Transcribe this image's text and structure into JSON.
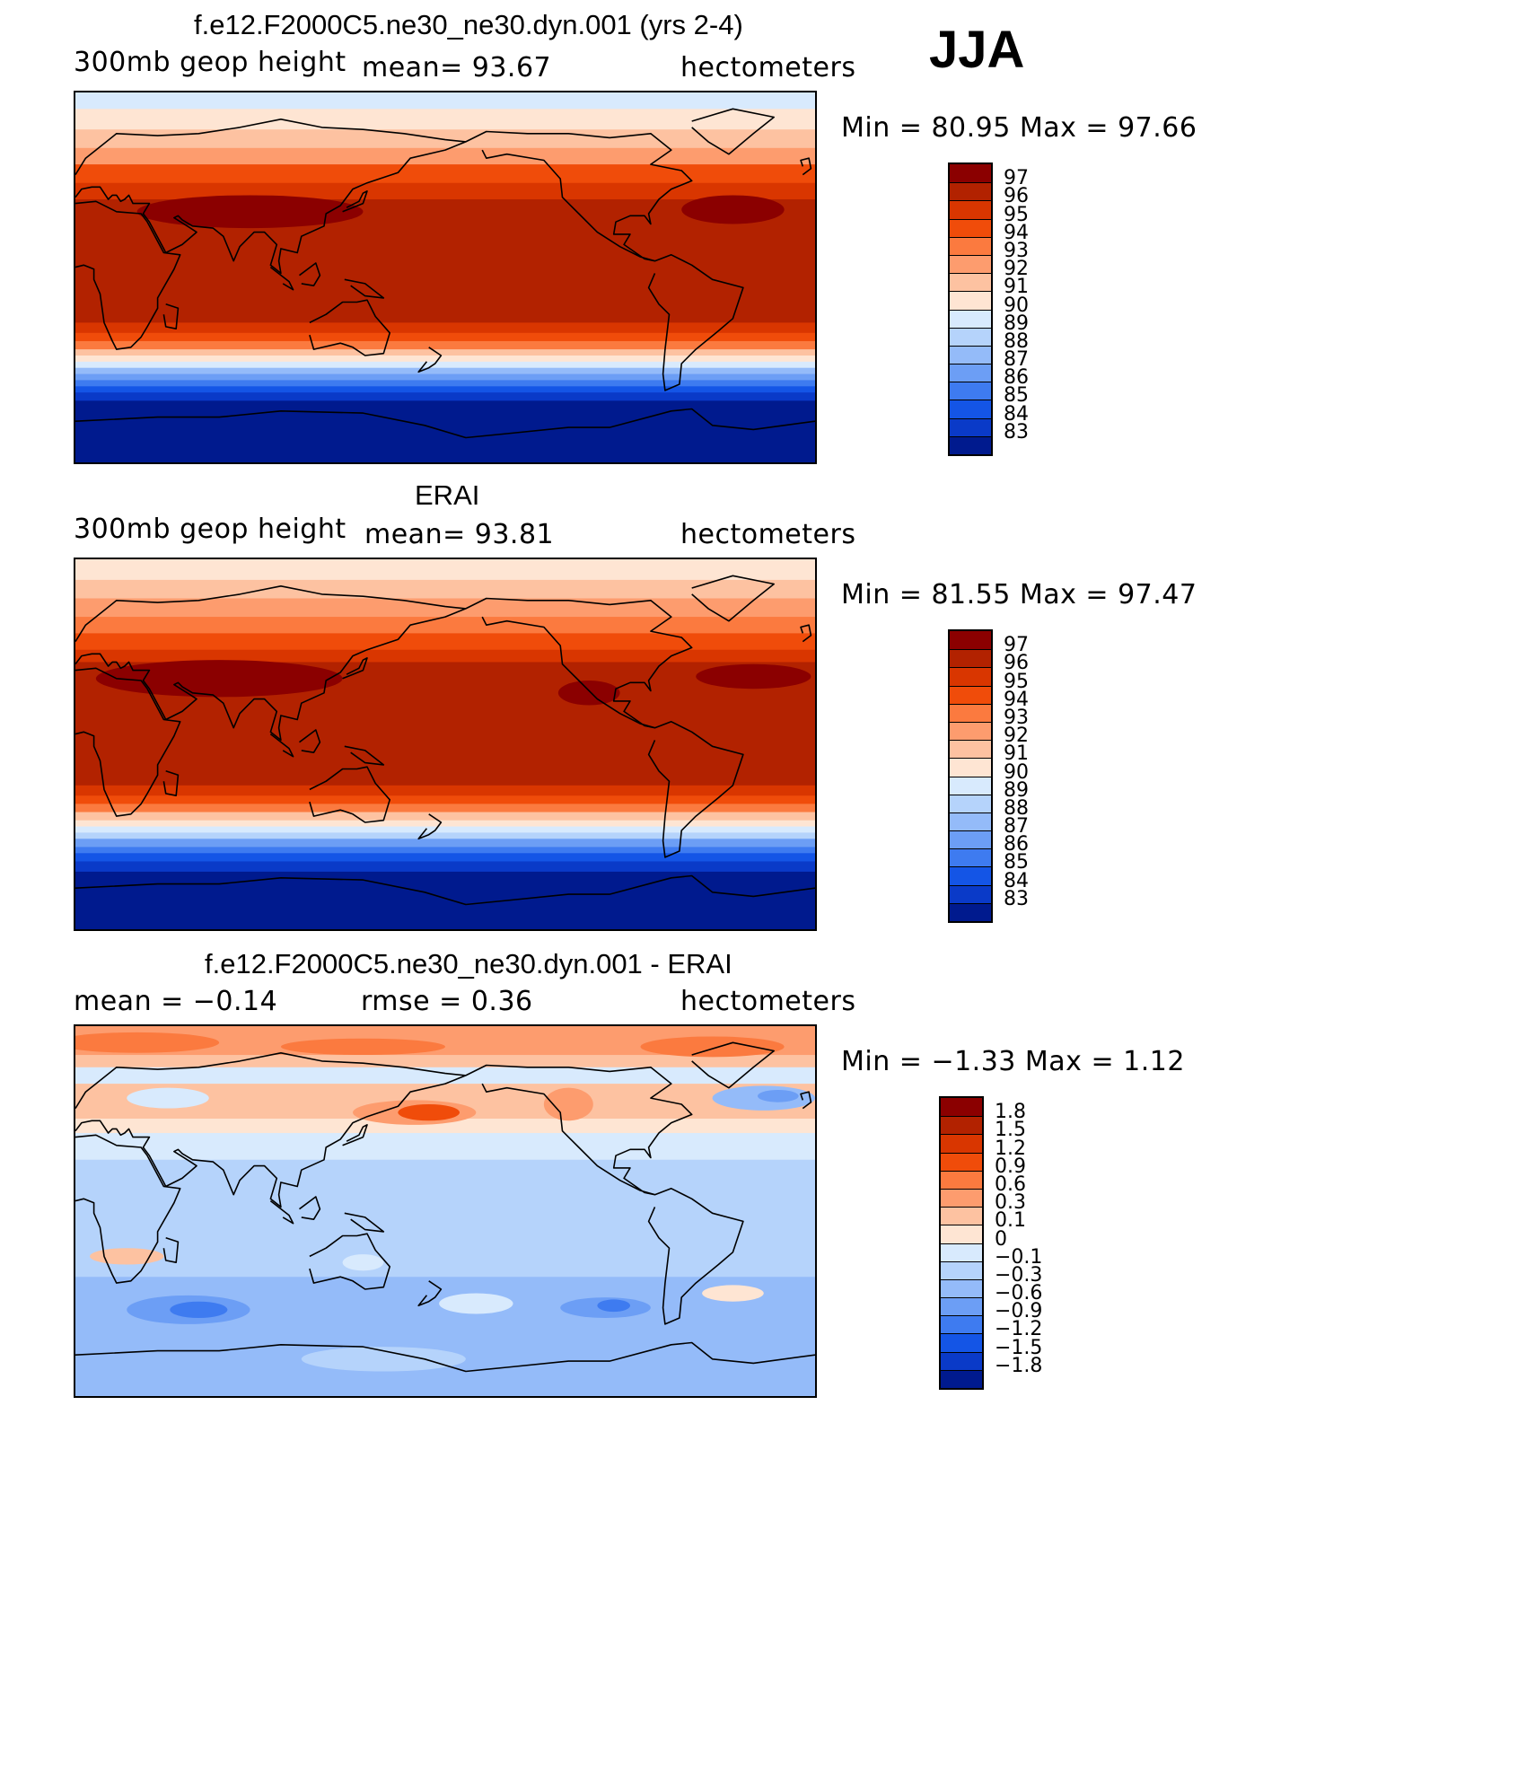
{
  "season": "JJA",
  "panels": [
    {
      "id": "model",
      "title": "f.e12.F2000C5.ne30_ne30.dyn.001 (yrs 2-4)",
      "left_label": "300mb  geop  height",
      "center_label": "mean=   93.67",
      "right_label": "hectometers",
      "minmax": "Min  =    80.95  Max  =    97.66",
      "levels": [
        "97",
        "96",
        "95",
        "94",
        "93",
        "92",
        "91",
        "90",
        "89",
        "88",
        "87",
        "86",
        "85",
        "84",
        "83"
      ],
      "colors": [
        "#8b0000",
        "#b22200",
        "#d93600",
        "#f04c0a",
        "#fb7a3f",
        "#fd9c6e",
        "#fdc2a1",
        "#fee5d3",
        "#d8eafd",
        "#b5d3fb",
        "#94bbf9",
        "#6c9ef5",
        "#3e7bf0",
        "#1455e6",
        "#0a3ac8",
        "#001a8e"
      ],
      "bands": [
        {
          "lat": 90,
          "c": "#d8eafd"
        },
        {
          "lat": 82,
          "c": "#fee5d3"
        },
        {
          "lat": 72,
          "c": "#fdc2a1"
        },
        {
          "lat": 63,
          "c": "#fd9c6e"
        },
        {
          "lat": 55,
          "c": "#f04c0a"
        },
        {
          "lat": 46,
          "c": "#d93600"
        },
        {
          "lat": 38,
          "c": "#b22200"
        },
        {
          "lat": -22,
          "c": "#d93600"
        },
        {
          "lat": -27,
          "c": "#f04c0a"
        },
        {
          "lat": -31,
          "c": "#fb7a3f"
        },
        {
          "lat": -35,
          "c": "#fdc2a1"
        },
        {
          "lat": -38,
          "c": "#fee5d3"
        },
        {
          "lat": -41,
          "c": "#d8eafd"
        },
        {
          "lat": -44,
          "c": "#94bbf9"
        },
        {
          "lat": -47,
          "c": "#6c9ef5"
        },
        {
          "lat": -50,
          "c": "#3e7bf0"
        },
        {
          "lat": -53,
          "c": "#1455e6"
        },
        {
          "lat": -56,
          "c": "#0a3ac8"
        },
        {
          "lat": -60,
          "c": "#001a8e"
        }
      ],
      "blobs": [
        {
          "lon": 85,
          "lat": 32,
          "rx": 55,
          "ry": 8,
          "c": "#8b0000"
        },
        {
          "lon": 320,
          "lat": 33,
          "rx": 25,
          "ry": 7,
          "c": "#8b0000"
        }
      ]
    },
    {
      "id": "obs",
      "title": "ERAI",
      "left_label": "300mb  geop  height",
      "center_label": "mean=   93.81",
      "right_label": "hectometers",
      "minmax": "Min  =    81.55  Max  =    97.47",
      "levels": [
        "97",
        "96",
        "95",
        "94",
        "93",
        "92",
        "91",
        "90",
        "89",
        "88",
        "87",
        "86",
        "85",
        "84",
        "83"
      ],
      "colors": [
        "#8b0000",
        "#b22200",
        "#d93600",
        "#f04c0a",
        "#fb7a3f",
        "#fd9c6e",
        "#fdc2a1",
        "#fee5d3",
        "#d8eafd",
        "#b5d3fb",
        "#94bbf9",
        "#6c9ef5",
        "#3e7bf0",
        "#1455e6",
        "#0a3ac8",
        "#001a8e"
      ],
      "bands": [
        {
          "lat": 90,
          "c": "#fee5d3"
        },
        {
          "lat": 80,
          "c": "#fdc2a1"
        },
        {
          "lat": 71,
          "c": "#fd9c6e"
        },
        {
          "lat": 62,
          "c": "#fb7a3f"
        },
        {
          "lat": 54,
          "c": "#f04c0a"
        },
        {
          "lat": 46,
          "c": "#d93600"
        },
        {
          "lat": 40,
          "c": "#b22200"
        },
        {
          "lat": -20,
          "c": "#d93600"
        },
        {
          "lat": -25,
          "c": "#f04c0a"
        },
        {
          "lat": -29,
          "c": "#fb7a3f"
        },
        {
          "lat": -33,
          "c": "#fdc2a1"
        },
        {
          "lat": -37,
          "c": "#fee5d3"
        },
        {
          "lat": -40,
          "c": "#d8eafd"
        },
        {
          "lat": -43,
          "c": "#b5d3fb"
        },
        {
          "lat": -46,
          "c": "#6c9ef5"
        },
        {
          "lat": -50,
          "c": "#3e7bf0"
        },
        {
          "lat": -53,
          "c": "#1455e6"
        },
        {
          "lat": -57,
          "c": "#0a3ac8"
        },
        {
          "lat": -62,
          "c": "#001a8e"
        }
      ],
      "blobs": [
        {
          "lon": 70,
          "lat": 32,
          "rx": 60,
          "ry": 9,
          "c": "#8b0000"
        },
        {
          "lon": 250,
          "lat": 25,
          "rx": 15,
          "ry": 6,
          "c": "#8b0000"
        },
        {
          "lon": 330,
          "lat": 33,
          "rx": 28,
          "ry": 6,
          "c": "#8b0000"
        }
      ]
    },
    {
      "id": "diff",
      "title": "f.e12.F2000C5.ne30_ne30.dyn.001 - ERAI",
      "left_label": "mean  =    −0.14",
      "center_label": "rmse  =     0.36",
      "right_label": "hectometers",
      "minmax": "Min  =   −1.33  Max  =     1.12",
      "levels": [
        "1.8",
        "1.5",
        "1.2",
        "0.9",
        "0.6",
        "0.3",
        "0.1",
        "0",
        "−0.1",
        "−0.3",
        "−0.6",
        "−0.9",
        "−1.2",
        "−1.5",
        "−1.8"
      ],
      "colors": [
        "#8b0000",
        "#b22200",
        "#d93600",
        "#f04c0a",
        "#fb7a3f",
        "#fd9c6e",
        "#fdc2a1",
        "#fee5d3",
        "#d8eafd",
        "#b5d3fb",
        "#94bbf9",
        "#6c9ef5",
        "#3e7bf0",
        "#1455e6",
        "#0a3ac8",
        "#001a8e"
      ],
      "bands": [
        {
          "lat": 90,
          "c": "#fd9c6e"
        },
        {
          "lat": 76,
          "c": "#fdc2a1"
        },
        {
          "lat": 70,
          "c": "#d8eafd"
        },
        {
          "lat": 62,
          "c": "#fdc2a1"
        },
        {
          "lat": 45,
          "c": "#fee5d3"
        },
        {
          "lat": 38,
          "c": "#d8eafd"
        },
        {
          "lat": 25,
          "c": "#b5d3fb"
        },
        {
          "lat": -32,
          "c": "#94bbf9"
        },
        {
          "lat": -62,
          "c": "#94bbf9"
        }
      ],
      "blobs": [
        {
          "lon": 30,
          "lat": 82,
          "rx": 40,
          "ry": 5,
          "c": "#fb7a3f"
        },
        {
          "lon": 140,
          "lat": 80,
          "rx": 40,
          "ry": 4,
          "c": "#fb7a3f"
        },
        {
          "lon": 310,
          "lat": 80,
          "rx": 35,
          "ry": 5,
          "c": "#fb7a3f"
        },
        {
          "lon": 165,
          "lat": 48,
          "rx": 30,
          "ry": 6,
          "c": "#fd9c6e"
        },
        {
          "lon": 172,
          "lat": 48,
          "rx": 15,
          "ry": 4,
          "c": "#f04c0a"
        },
        {
          "lon": 240,
          "lat": 52,
          "rx": 12,
          "ry": 8,
          "c": "#fd9c6e"
        },
        {
          "lon": 100,
          "lat": 52,
          "rx": 30,
          "ry": 6,
          "c": "#fdc2a1"
        },
        {
          "lon": 335,
          "lat": 55,
          "rx": 25,
          "ry": 6,
          "c": "#94bbf9"
        },
        {
          "lon": 342,
          "lat": 56,
          "rx": 10,
          "ry": 3,
          "c": "#6c9ef5"
        },
        {
          "lon": 45,
          "lat": 55,
          "rx": 20,
          "ry": 5,
          "c": "#d8eafd"
        },
        {
          "lon": 25,
          "lat": -22,
          "rx": 18,
          "ry": 4,
          "c": "#fdc2a1"
        },
        {
          "lon": 320,
          "lat": -40,
          "rx": 15,
          "ry": 4,
          "c": "#fee5d3"
        },
        {
          "lon": 55,
          "lat": -48,
          "rx": 30,
          "ry": 7,
          "c": "#6c9ef5"
        },
        {
          "lon": 60,
          "lat": -48,
          "rx": 14,
          "ry": 4,
          "c": "#3e7bf0"
        },
        {
          "lon": 195,
          "lat": -45,
          "rx": 18,
          "ry": 5,
          "c": "#d8eafd"
        },
        {
          "lon": 258,
          "lat": -47,
          "rx": 22,
          "ry": 5,
          "c": "#6c9ef5"
        },
        {
          "lon": 262,
          "lat": -46,
          "rx": 8,
          "ry": 3,
          "c": "#3e7bf0"
        },
        {
          "lon": 140,
          "lat": -25,
          "rx": 10,
          "ry": 4,
          "c": "#d8eafd"
        },
        {
          "lon": 150,
          "lat": -72,
          "rx": 40,
          "ry": 6,
          "c": "#b5d3fb"
        }
      ]
    }
  ]
}
